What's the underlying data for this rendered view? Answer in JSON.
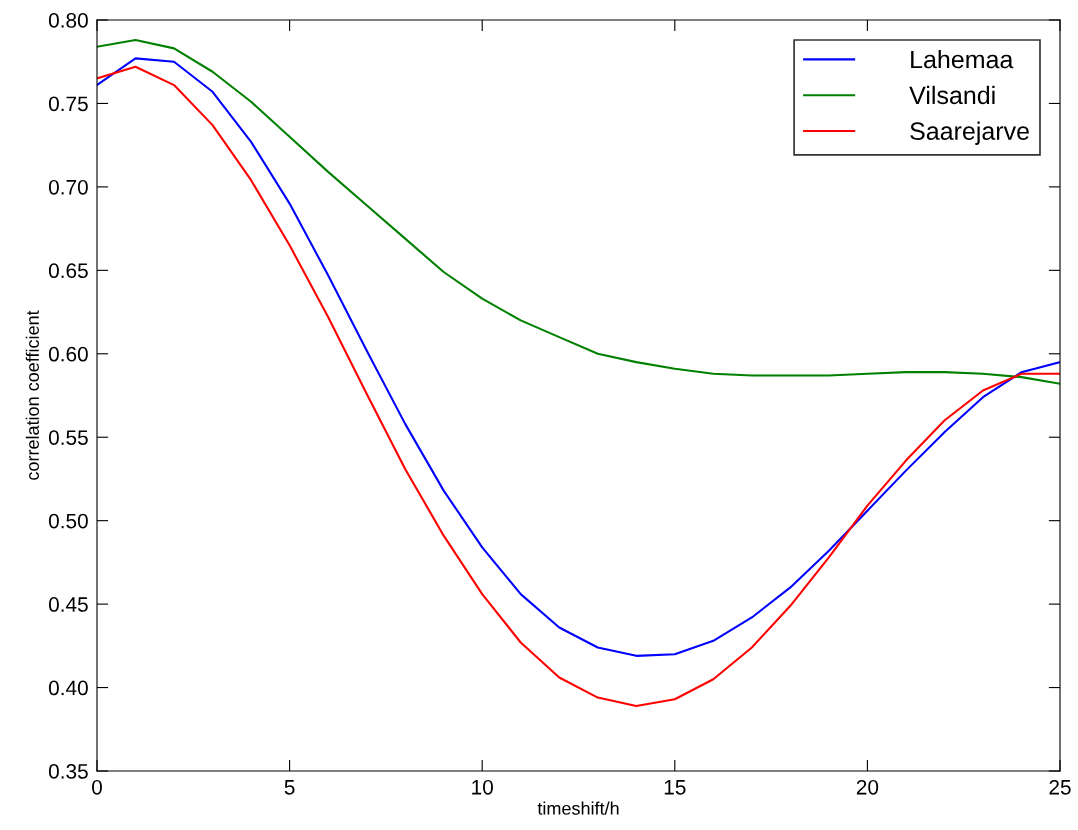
{
  "chart_data": {
    "type": "line",
    "xlabel": "timeshift/h",
    "ylabel": "correlation coefficient",
    "x": [
      0,
      1,
      2,
      3,
      4,
      5,
      6,
      7,
      8,
      9,
      10,
      11,
      12,
      13,
      14,
      15,
      16,
      17,
      18,
      19,
      20,
      21,
      22,
      23,
      24,
      25
    ],
    "series": [
      {
        "name": "Lahemaa",
        "color": "#0000ff",
        "values": [
          0.761,
          0.777,
          0.775,
          0.757,
          0.727,
          0.69,
          0.647,
          0.602,
          0.558,
          0.518,
          0.484,
          0.456,
          0.436,
          0.424,
          0.419,
          0.42,
          0.428,
          0.442,
          0.46,
          0.482,
          0.506,
          0.53,
          0.553,
          0.574,
          0.589,
          0.595
        ]
      },
      {
        "name": "Vilsandi",
        "color": "#008000",
        "values": [
          0.784,
          0.788,
          0.783,
          0.769,
          0.751,
          0.73,
          0.709,
          0.689,
          0.669,
          0.649,
          0.633,
          0.62,
          0.61,
          0.6,
          0.595,
          0.591,
          0.588,
          0.587,
          0.587,
          0.587,
          0.588,
          0.589,
          0.589,
          0.588,
          0.586,
          0.582
        ]
      },
      {
        "name": "Saarejarve",
        "color": "#ff0000",
        "values": [
          0.765,
          0.772,
          0.761,
          0.737,
          0.704,
          0.665,
          0.622,
          0.576,
          0.531,
          0.491,
          0.456,
          0.427,
          0.406,
          0.394,
          0.389,
          0.393,
          0.405,
          0.424,
          0.449,
          0.478,
          0.509,
          0.536,
          0.56,
          0.578,
          0.588,
          0.588
        ]
      }
    ],
    "xlim": [
      0,
      25
    ],
    "xticks": [
      0,
      5,
      10,
      15,
      20,
      25
    ],
    "ylim": [
      0.35,
      0.8
    ],
    "yticks": [
      {
        "value": 0.35,
        "label": "0.35"
      },
      {
        "value": 0.4,
        "label": "0.40"
      },
      {
        "value": 0.45,
        "label": "0.45"
      },
      {
        "value": 0.5,
        "label": "0.50"
      },
      {
        "value": 0.55,
        "label": "0.55"
      },
      {
        "value": 0.6,
        "label": "0.60"
      },
      {
        "value": 0.65,
        "label": "0.65"
      },
      {
        "value": 0.7,
        "label": "0.70"
      },
      {
        "value": 0.75,
        "label": "0.75"
      },
      {
        "value": 0.8,
        "label": "0.80"
      }
    ],
    "legend": "top right",
    "grid": false
  }
}
